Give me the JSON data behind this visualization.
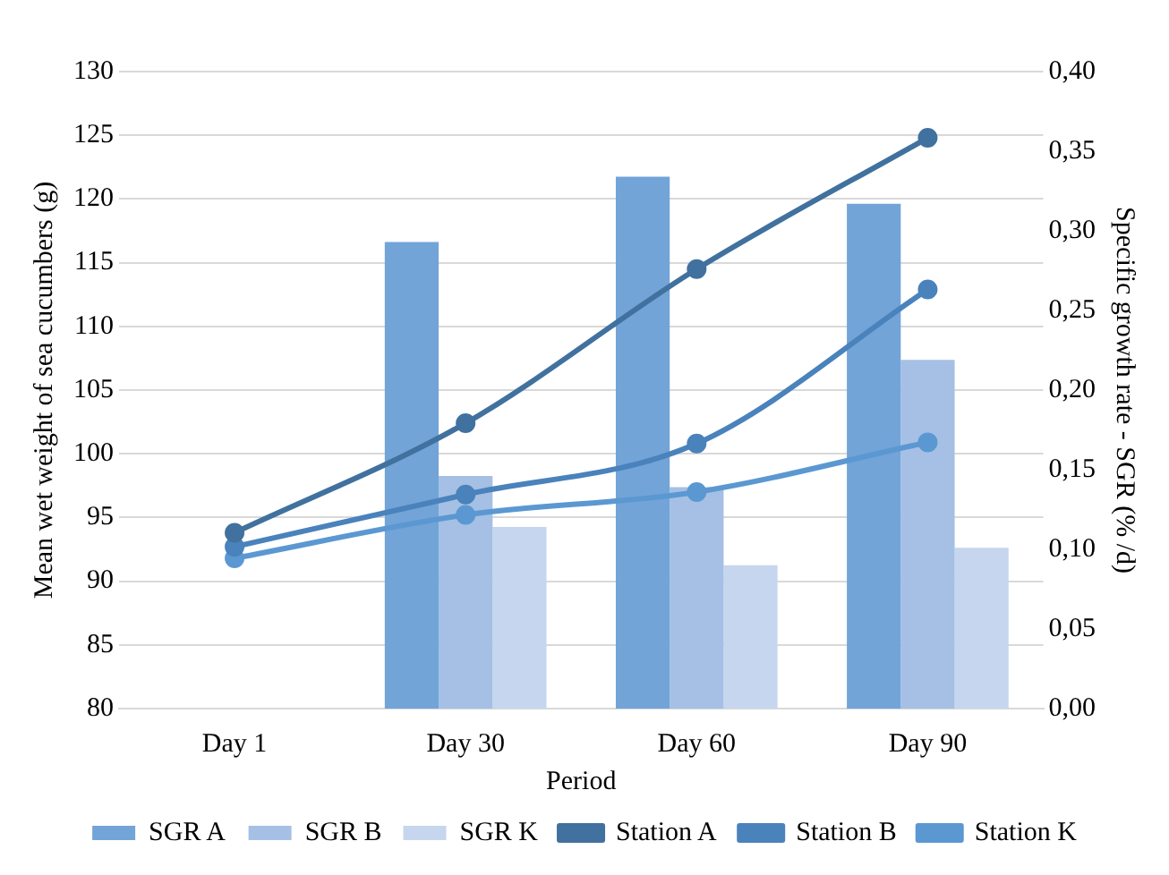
{
  "chart_data": {
    "type": "bar",
    "xlabel": "Period",
    "ylabel": "Mean wet weight of sea cucumbers (g)",
    "y2label": "Specific growth rate - SGR (% /d)",
    "categories": [
      "Day 1",
      "Day 30",
      "Day 60",
      "Day 90"
    ],
    "series": [
      {
        "name": "SGR A",
        "axis": "y2",
        "color": "#72a4d8",
        "values": [
          null,
          0.293,
          0.334,
          0.317
        ]
      },
      {
        "name": "SGR B",
        "axis": "y2",
        "color": "#a5c0e4",
        "values": [
          null,
          0.146,
          0.139,
          0.219
        ]
      },
      {
        "name": "SGR K",
        "axis": "y2",
        "color": "#c6d6ee",
        "values": [
          null,
          0.114,
          0.09,
          0.101
        ]
      },
      {
        "name": "Station A",
        "type": "line",
        "color": "#41719e",
        "values": [
          93.8,
          102.4,
          114.5,
          124.8
        ]
      },
      {
        "name": "Station B",
        "type": "line",
        "color": "#4a82bc",
        "values": [
          92.7,
          96.8,
          100.8,
          112.9
        ]
      },
      {
        "name": "Station K",
        "type": "line",
        "color": "#5b98d2",
        "values": [
          91.8,
          95.2,
          97.0,
          100.9
        ]
      }
    ],
    "ylim": [
      80,
      130
    ],
    "yticks": [
      80,
      85,
      90,
      95,
      100,
      105,
      110,
      115,
      120,
      125,
      130
    ],
    "y2lim": [
      0,
      0.4
    ],
    "y2ticks": [
      {
        "value": 0,
        "label": "0,00"
      },
      {
        "value": 0.05,
        "label": "0,05"
      },
      {
        "value": 0.1,
        "label": "0,10"
      },
      {
        "value": 0.15,
        "label": "0,15"
      },
      {
        "value": 0.2,
        "label": "0,20"
      },
      {
        "value": 0.25,
        "label": "0,25"
      },
      {
        "value": 0.3,
        "label": "0,30"
      },
      {
        "value": 0.35,
        "label": "0,35"
      },
      {
        "value": 0.4,
        "label": "0,40"
      }
    ],
    "grid": "y",
    "legend": "bottom",
    "marker": "circle",
    "line_style": "solid"
  }
}
